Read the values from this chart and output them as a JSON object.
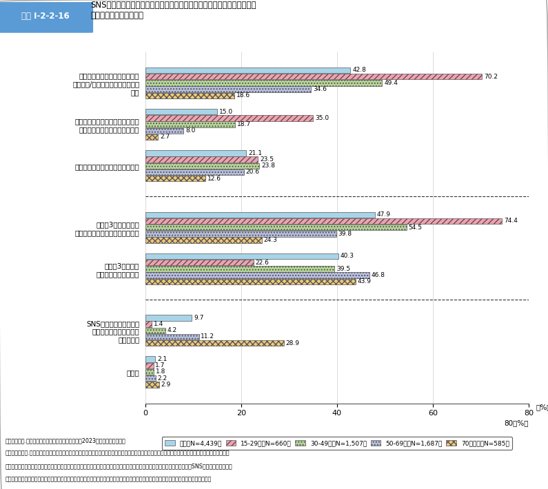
{
  "title_box_label": "図表 I-2-2-16",
  "title_text": "SNSやクチコミサイト、動画サイト等で、商品やサービスに関して反応を\n行った経験（年齢層別）",
  "categories": [
    "「お気に入り」や「いいね」や\n「高評価/低評価」をつけたことが\nある",
    "「リツイート」や「リポスト」や\n　「シェア」をしたことがある",
    "投稿やコメントをしたことがある",
    "（上詒3項目のうち）\nいずれかの反応をしたことがある",
    "（上詒3項目の）\n反応をしたことはない",
    "SNSやクチコミサイト、\n動画サイト等を利用した\nことがない",
    "無回答"
  ],
  "series": [
    {
      "label": "全体（N=4,439）",
      "color": "#a8d4e8",
      "hatch": "",
      "values": [
        42.8,
        15.0,
        21.1,
        47.9,
        40.3,
        9.7,
        2.1
      ]
    },
    {
      "label": "15-29歳（N=660）",
      "color": "#f4a0b0",
      "hatch": "////",
      "values": [
        70.2,
        35.0,
        23.5,
        74.4,
        22.6,
        1.4,
        1.7
      ]
    },
    {
      "label": "30-49歳（N=1,507）",
      "color": "#b8d898",
      "hatch": "....",
      "values": [
        49.4,
        18.7,
        23.8,
        54.5,
        39.5,
        4.2,
        1.8
      ]
    },
    {
      "label": "50-69歳（N=1,687）",
      "color": "#b8c0e0",
      "hatch": "....",
      "values": [
        34.6,
        8.0,
        20.6,
        39.8,
        46.8,
        11.2,
        2.2
      ]
    },
    {
      "label": "70歳以上（N=585）",
      "color": "#f0c87a",
      "hatch": "xxxx",
      "values": [
        18.6,
        2.7,
        12.6,
        24.3,
        43.9,
        28.9,
        2.9
      ]
    }
  ],
  "xlim": [
    0,
    80
  ],
  "xticks": [
    0,
    20,
    40,
    60,
    80
  ],
  "xlabel": "80（%）",
  "separator_after": [
    2,
    4
  ],
  "note1": "（備考）　１.　消費者庁「消費者意識基本調査」（2023年度）により作成。",
  "note2": "　　　　　　２.　「あなたは普段、パソコンやスマートフォン等で、どの程度インターネットを利用していますか。」との問いに対し、「ほとんど毎日",
  "note3": "　　　　　　　　利用している」、「毎日ではないが定期的に利用している」又は「時々利用している」と回答した人への、「SNSやクチコミサイト、",
  "note4": "　　　　　　　　動画サイト等で、商品やサービスに関して、以下の反応をしたことはありますか。」との問いに対する回答（複数回答）。"
}
